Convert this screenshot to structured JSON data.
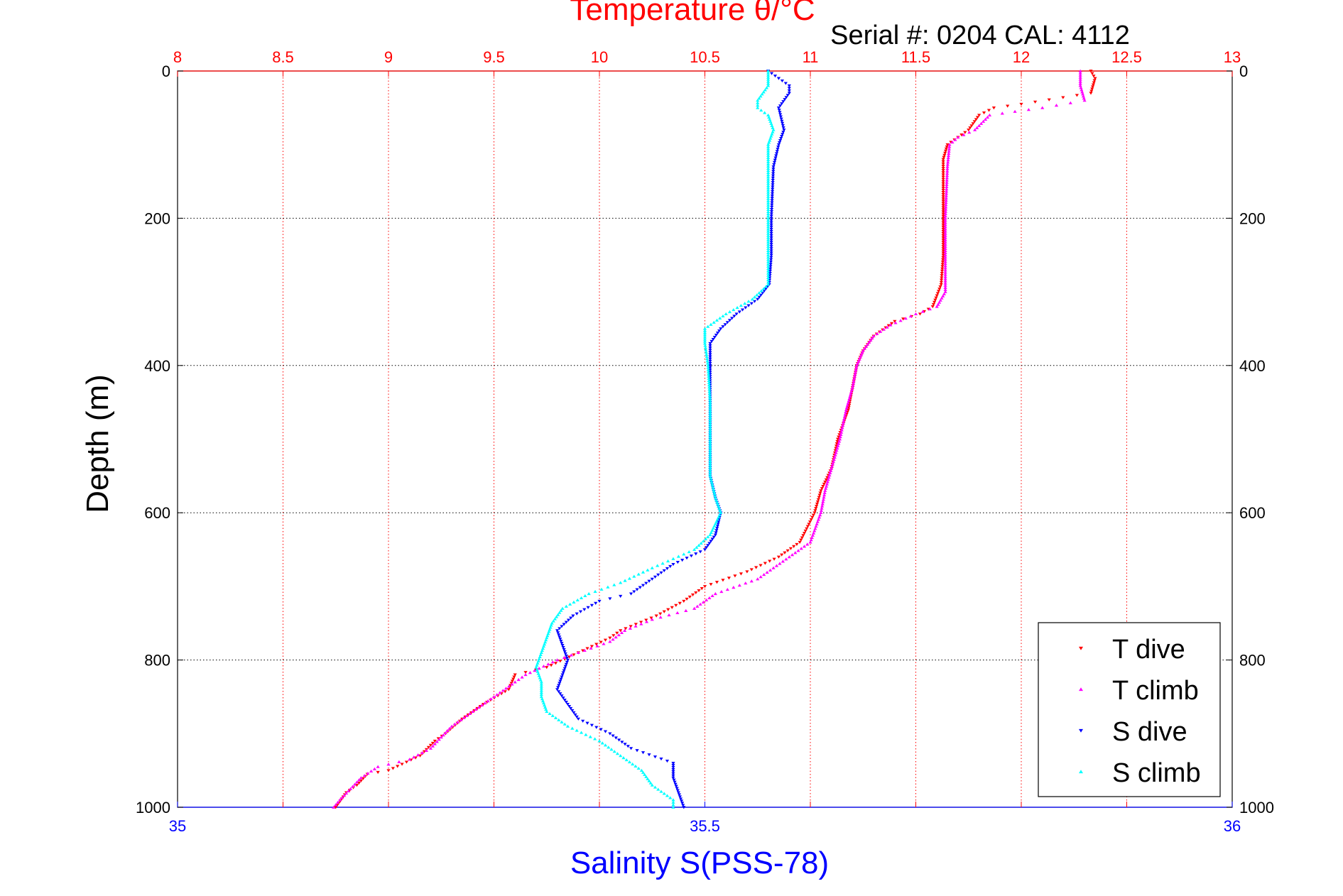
{
  "chart_data": {
    "type": "scatter",
    "title_top": "Temperature θ/°C",
    "subtitle": "Serial #: 0204  CAL: 4112",
    "xlabel_bottom": "Salinity S(PSS-78)",
    "ylabel": "Depth (m)",
    "x_top": {
      "min": 8,
      "max": 13,
      "ticks": [
        8,
        8.5,
        9,
        9.5,
        10,
        10.5,
        11,
        11.5,
        12,
        12.5,
        13
      ],
      "tick_labels": [
        "8",
        "8.5",
        "9",
        "9.5",
        "10",
        "10.5",
        "11",
        "11.5",
        "12",
        "12.5",
        "13"
      ]
    },
    "x_bottom": {
      "min": 35,
      "max": 36,
      "ticks": [
        35,
        35.5,
        36
      ],
      "tick_labels": [
        "35",
        "35.5",
        "36"
      ]
    },
    "y": {
      "min": 0,
      "max": 1000,
      "reversed": true,
      "ticks": [
        0,
        200,
        400,
        600,
        800,
        1000
      ],
      "tick_labels": [
        "0",
        "200",
        "400",
        "600",
        "800",
        "1000"
      ]
    },
    "grid": true,
    "legend_position": "bottom-right",
    "series": [
      {
        "name": "T dive",
        "axis": "top",
        "color": "#ff0000",
        "marker": "triangle-down",
        "points": [
          [
            12.33,
            0
          ],
          [
            12.35,
            10
          ],
          [
            12.33,
            30
          ],
          [
            12.0,
            45
          ],
          [
            11.87,
            50
          ],
          [
            11.8,
            60
          ],
          [
            11.75,
            80
          ],
          [
            11.7,
            90
          ],
          [
            11.65,
            100
          ],
          [
            11.63,
            120
          ],
          [
            11.63,
            150
          ],
          [
            11.63,
            200
          ],
          [
            11.63,
            250
          ],
          [
            11.62,
            290
          ],
          [
            11.58,
            320
          ],
          [
            11.52,
            330
          ],
          [
            11.4,
            340
          ],
          [
            11.3,
            360
          ],
          [
            11.25,
            380
          ],
          [
            11.22,
            400
          ],
          [
            11.2,
            430
          ],
          [
            11.18,
            460
          ],
          [
            11.13,
            500
          ],
          [
            11.1,
            540
          ],
          [
            11.05,
            570
          ],
          [
            11.02,
            600
          ],
          [
            10.95,
            640
          ],
          [
            10.85,
            660
          ],
          [
            10.7,
            680
          ],
          [
            10.5,
            700
          ],
          [
            10.4,
            720
          ],
          [
            10.27,
            740
          ],
          [
            10.1,
            760
          ],
          [
            10.05,
            770
          ],
          [
            9.9,
            790
          ],
          [
            9.75,
            810
          ],
          [
            9.6,
            820
          ],
          [
            9.57,
            840
          ],
          [
            9.45,
            860
          ],
          [
            9.35,
            880
          ],
          [
            9.27,
            900
          ],
          [
            9.22,
            910
          ],
          [
            9.15,
            930
          ],
          [
            9.0,
            950
          ],
          [
            8.9,
            955
          ],
          [
            8.85,
            970
          ],
          [
            8.8,
            980
          ],
          [
            8.75,
            1000
          ]
        ]
      },
      {
        "name": "T climb",
        "axis": "top",
        "color": "#ff00ff",
        "marker": "triangle-up",
        "points": [
          [
            12.28,
            0
          ],
          [
            12.28,
            20
          ],
          [
            12.3,
            40
          ],
          [
            12.1,
            50
          ],
          [
            11.97,
            55
          ],
          [
            11.85,
            60
          ],
          [
            11.78,
            80
          ],
          [
            11.7,
            90
          ],
          [
            11.66,
            100
          ],
          [
            11.65,
            130
          ],
          [
            11.64,
            200
          ],
          [
            11.64,
            250
          ],
          [
            11.64,
            300
          ],
          [
            11.6,
            320
          ],
          [
            11.5,
            330
          ],
          [
            11.38,
            345
          ],
          [
            11.3,
            360
          ],
          [
            11.25,
            380
          ],
          [
            11.22,
            400
          ],
          [
            11.2,
            430
          ],
          [
            11.17,
            460
          ],
          [
            11.14,
            500
          ],
          [
            11.1,
            540
          ],
          [
            11.07,
            570
          ],
          [
            11.05,
            600
          ],
          [
            11.0,
            640
          ],
          [
            10.9,
            660
          ],
          [
            10.75,
            690
          ],
          [
            10.55,
            710
          ],
          [
            10.45,
            730
          ],
          [
            10.25,
            745
          ],
          [
            10.12,
            760
          ],
          [
            10.05,
            775
          ],
          [
            9.9,
            790
          ],
          [
            9.8,
            800
          ],
          [
            9.65,
            820
          ],
          [
            9.6,
            830
          ],
          [
            9.5,
            850
          ],
          [
            9.4,
            870
          ],
          [
            9.3,
            890
          ],
          [
            9.25,
            905
          ],
          [
            9.2,
            920
          ],
          [
            9.1,
            935
          ],
          [
            8.95,
            945
          ],
          [
            8.87,
            960
          ],
          [
            8.82,
            975
          ],
          [
            8.77,
            990
          ],
          [
            8.74,
            1000
          ]
        ]
      },
      {
        "name": "S dive",
        "axis": "bottom",
        "color": "#0000ff",
        "marker": "triangle-down",
        "points": [
          [
            35.56,
            0
          ],
          [
            35.57,
            10
          ],
          [
            35.58,
            20
          ],
          [
            35.58,
            30
          ],
          [
            35.57,
            50
          ],
          [
            35.575,
            80
          ],
          [
            35.57,
            100
          ],
          [
            35.565,
            130
          ],
          [
            35.563,
            200
          ],
          [
            35.563,
            250
          ],
          [
            35.561,
            290
          ],
          [
            35.55,
            310
          ],
          [
            35.53,
            330
          ],
          [
            35.515,
            350
          ],
          [
            35.505,
            370
          ],
          [
            35.505,
            400
          ],
          [
            35.505,
            450
          ],
          [
            35.505,
            500
          ],
          [
            35.505,
            550
          ],
          [
            35.51,
            580
          ],
          [
            35.515,
            600
          ],
          [
            35.51,
            630
          ],
          [
            35.5,
            650
          ],
          [
            35.47,
            670
          ],
          [
            35.45,
            690
          ],
          [
            35.43,
            710
          ],
          [
            35.4,
            720
          ],
          [
            35.375,
            740
          ],
          [
            35.36,
            760
          ],
          [
            35.365,
            780
          ],
          [
            35.37,
            800
          ],
          [
            35.365,
            820
          ],
          [
            35.36,
            840
          ],
          [
            35.37,
            860
          ],
          [
            35.38,
            880
          ],
          [
            35.41,
            900
          ],
          [
            35.43,
            920
          ],
          [
            35.47,
            940
          ],
          [
            35.47,
            960
          ],
          [
            35.475,
            980
          ],
          [
            35.48,
            1000
          ]
        ]
      },
      {
        "name": "S climb",
        "axis": "bottom",
        "color": "#00ffff",
        "marker": "triangle-up",
        "points": [
          [
            35.56,
            0
          ],
          [
            35.56,
            20
          ],
          [
            35.55,
            40
          ],
          [
            35.55,
            50
          ],
          [
            35.56,
            60
          ],
          [
            35.565,
            80
          ],
          [
            35.56,
            100
          ],
          [
            35.56,
            150
          ],
          [
            35.56,
            200
          ],
          [
            35.56,
            250
          ],
          [
            35.56,
            290
          ],
          [
            35.545,
            310
          ],
          [
            35.52,
            330
          ],
          [
            35.5,
            350
          ],
          [
            35.5,
            370
          ],
          [
            35.503,
            400
          ],
          [
            35.505,
            450
          ],
          [
            35.505,
            500
          ],
          [
            35.505,
            550
          ],
          [
            35.51,
            580
          ],
          [
            35.515,
            600
          ],
          [
            35.505,
            630
          ],
          [
            35.49,
            650
          ],
          [
            35.45,
            675
          ],
          [
            35.42,
            695
          ],
          [
            35.39,
            710
          ],
          [
            35.365,
            730
          ],
          [
            35.355,
            750
          ],
          [
            35.35,
            770
          ],
          [
            35.345,
            790
          ],
          [
            35.34,
            810
          ],
          [
            35.345,
            830
          ],
          [
            35.345,
            850
          ],
          [
            35.35,
            870
          ],
          [
            35.37,
            890
          ],
          [
            35.4,
            910
          ],
          [
            35.42,
            930
          ],
          [
            35.44,
            950
          ],
          [
            35.45,
            970
          ],
          [
            35.47,
            990
          ],
          [
            35.47,
            1000
          ]
        ]
      }
    ]
  }
}
